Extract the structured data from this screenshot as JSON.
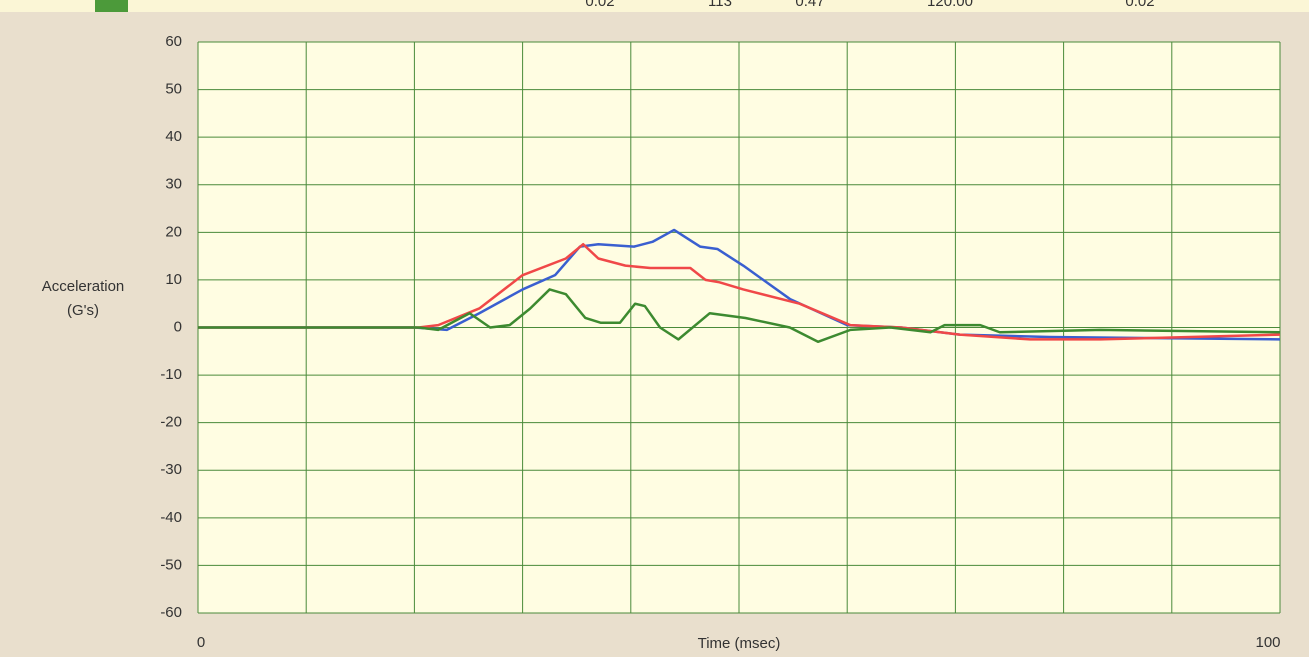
{
  "header_row": [
    "0.02",
    "113",
    "0.47",
    "120.00",
    "0.02"
  ],
  "chart_data": {
    "type": "line",
    "xlabel": "Time (msec)",
    "ylabel": [
      "Acceleration",
      "(G's)"
    ],
    "xlim": [
      0,
      100
    ],
    "xticks": [
      0,
      100
    ],
    "xgrid": [
      0,
      10,
      20,
      30,
      40,
      50,
      60,
      70,
      80,
      90,
      100
    ],
    "ylim": [
      -60,
      60
    ],
    "yticks": [
      -60,
      -50,
      -40,
      -30,
      -20,
      -10,
      0,
      10,
      20,
      30,
      40,
      50,
      60
    ],
    "grid": true,
    "series": [
      {
        "name": "Blue",
        "color": "#3a5fd0",
        "x": [
          0,
          20,
          23,
          26,
          30,
          33,
          35.3,
          37,
          40.3,
          42,
          44,
          46.4,
          48,
          50.4,
          54.7,
          60,
          65,
          70.4,
          78.7,
          100
        ],
        "values": [
          0,
          0,
          -0.5,
          3,
          8,
          11,
          17,
          17.5,
          17,
          18,
          20.5,
          17,
          16.5,
          13,
          6,
          0.5,
          0,
          -1.5,
          -2,
          -2.5
        ]
      },
      {
        "name": "Red",
        "color": "#f04848",
        "x": [
          0,
          20.4,
          22.2,
          26,
          30,
          34,
          35.6,
          37,
          39.5,
          41.8,
          45.5,
          46.9,
          48.2,
          50.4,
          55.6,
          60.3,
          65,
          70.4,
          76.9,
          83.4,
          100
        ],
        "values": [
          0,
          0,
          0.5,
          4,
          11,
          14.5,
          17.5,
          14.5,
          13,
          12.5,
          12.5,
          10,
          9.5,
          8,
          5,
          0.5,
          0,
          -1.5,
          -2.5,
          -2.5,
          -1.5
        ]
      },
      {
        "name": "Green",
        "color": "#3d8a30",
        "x": [
          0,
          20.4,
          22.2,
          25.1,
          27,
          28.8,
          30.7,
          32.5,
          34,
          35.8,
          37.2,
          39,
          40.4,
          41.3,
          42.7,
          44.4,
          47.3,
          50.6,
          54.7,
          57.3,
          60.3,
          64,
          67.7,
          69,
          72.3,
          74.1,
          83.4,
          100
        ],
        "values": [
          0,
          0,
          -0.5,
          3,
          0,
          0.5,
          4,
          8,
          7,
          2,
          1,
          1,
          5,
          4.5,
          0,
          -2.5,
          3,
          2,
          0,
          -3,
          -0.5,
          0,
          -1,
          0.5,
          0.5,
          -1,
          -0.5,
          -1
        ]
      }
    ]
  }
}
